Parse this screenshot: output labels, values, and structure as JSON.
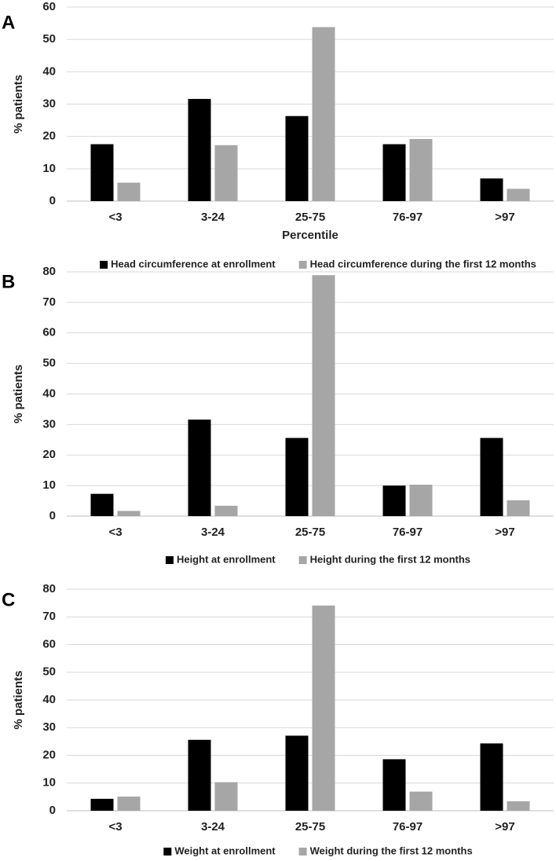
{
  "chart_data": [
    {
      "type": "bar",
      "panel": "A",
      "ylabel": "% patients",
      "xlabel": "Percentile",
      "categories": [
        "<3",
        "3-24",
        "25-75",
        "76-97",
        ">97"
      ],
      "series": [
        {
          "name": "Head circumference at enrollment",
          "color": "#000000",
          "values": [
            17.6,
            31.6,
            26.3,
            17.6,
            7.0
          ]
        },
        {
          "name": "Head circumference during the first 12 months",
          "color": "#a6a6a6",
          "values": [
            5.7,
            17.3,
            53.8,
            19.2,
            3.8
          ]
        }
      ],
      "ylim": [
        0,
        60
      ],
      "yticks": [
        0,
        10,
        20,
        30,
        40,
        50,
        60
      ],
      "grid": true
    },
    {
      "type": "bar",
      "panel": "B",
      "ylabel": "% patients",
      "categories": [
        "<3",
        "3-24",
        "25-75",
        "76-97",
        ">97"
      ],
      "series": [
        {
          "name": "Height at enrollment",
          "color": "#000000",
          "values": [
            7.3,
            31.6,
            25.6,
            10.0,
            25.6
          ]
        },
        {
          "name": "Height during the first 12 months",
          "color": "#a6a6a6",
          "values": [
            1.7,
            3.4,
            78.9,
            10.3,
            5.2
          ]
        }
      ],
      "ylim": [
        0,
        80
      ],
      "yticks": [
        0,
        10,
        20,
        30,
        40,
        50,
        60,
        70,
        80
      ],
      "grid": true
    },
    {
      "type": "bar",
      "panel": "C",
      "ylabel": "% patients",
      "categories": [
        "<3",
        "3-24",
        "25-75",
        "76-97",
        ">97"
      ],
      "series": [
        {
          "name": "Weight at enrollment",
          "color": "#000000",
          "values": [
            4.3,
            25.6,
            27.1,
            18.6,
            24.3
          ]
        },
        {
          "name": "Weight during the first 12 months",
          "color": "#a6a6a6",
          "values": [
            5.1,
            10.3,
            74.1,
            6.9,
            3.4
          ]
        }
      ],
      "ylim": [
        0,
        80
      ],
      "yticks": [
        0,
        10,
        20,
        30,
        40,
        50,
        60,
        70,
        80
      ],
      "grid": true
    }
  ]
}
